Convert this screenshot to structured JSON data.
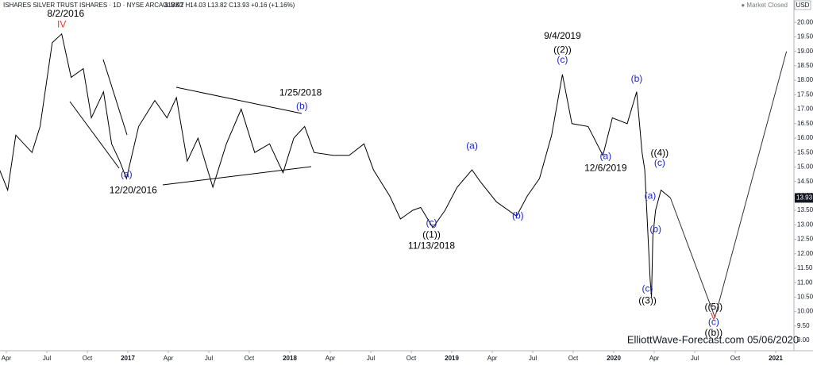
{
  "chart_data": {
    "type": "line",
    "title": "ISHARES SILVER TRUST ISHARES · 1D · NYSE ARCA & MKT",
    "subtitle": "O13.92 H14.03 L13.82 C13.93 +0.16 (+1.16%)",
    "status": "● Market Closed",
    "currency": "USD",
    "watermark": "ElliottWave-Forecast.com 05/06/2020",
    "color": "#000000",
    "x": [
      2.5,
      3.1,
      3.7,
      4.9,
      5.5,
      6.4,
      7.1,
      7.8,
      8.7,
      9.3,
      10.2,
      10.8,
      11.4,
      11.9,
      12.8,
      14.0,
      14.9,
      15.6,
      16.4,
      17.2,
      18.3,
      19.3,
      20.4,
      21.4,
      22.5,
      23.5,
      24.3,
      25.1,
      25.8,
      27.2,
      28.4,
      29.5,
      30.2,
      31.4,
      32.2,
      33.1,
      33.7,
      34.6,
      35.5,
      36.4,
      37.5,
      38.1,
      39.3,
      40.8,
      41.6,
      42.5,
      43.4,
      44.2,
      44.9,
      46.1,
      47.2,
      47.9,
      49.0,
      49.7,
      50.1,
      50.3,
      50.7,
      50.8,
      50.9,
      51.1,
      51.5,
      52.2
    ],
    "values": [
      14.9,
      14.2,
      16.1,
      15.5,
      16.4,
      19.3,
      19.6,
      18.1,
      18.4,
      16.7,
      17.6,
      15.8,
      15.2,
      14.6,
      16.4,
      17.3,
      16.7,
      17.4,
      15.2,
      16.0,
      14.3,
      15.8,
      17.0,
      15.5,
      15.8,
      14.8,
      16.0,
      16.4,
      15.5,
      15.4,
      15.4,
      15.8,
      14.9,
      14.0,
      13.2,
      13.5,
      13.6,
      12.9,
      13.5,
      14.3,
      14.9,
      14.5,
      13.8,
      13.3,
      14.0,
      14.6,
      16.1,
      18.2,
      16.5,
      16.4,
      15.4,
      16.7,
      16.5,
      17.6,
      15.5,
      14.9,
      11.1,
      10.5,
      12.6,
      13.5,
      14.2,
      13.93
    ],
    "projection_x": [
      52.2,
      55.5,
      60.8
    ],
    "projection_values": [
      13.93,
      9.8,
      19.0
    ],
    "projection_color": "#333333",
    "last_price": 13.93,
    "last_price_color": "#131722",
    "xlim": [
      2.53,
      61.35
    ],
    "ylim": [
      8.7,
      20.5
    ],
    "xticks": [
      {
        "value": 3,
        "label": "Apr"
      },
      {
        "value": 6,
        "label": "Jul"
      },
      {
        "value": 9,
        "label": "Oct"
      },
      {
        "value": 12,
        "label": "2017"
      },
      {
        "value": 15,
        "label": "Apr"
      },
      {
        "value": 18,
        "label": "Jul"
      },
      {
        "value": 21,
        "label": "Oct"
      },
      {
        "value": 24,
        "label": "2018"
      },
      {
        "value": 27,
        "label": "Apr"
      },
      {
        "value": 30,
        "label": "Jul"
      },
      {
        "value": 33,
        "label": "Oct"
      },
      {
        "value": 36,
        "label": "2019"
      },
      {
        "value": 39,
        "label": "Apr"
      },
      {
        "value": 42,
        "label": "Jul"
      },
      {
        "value": 45,
        "label": "Oct"
      },
      {
        "value": 48,
        "label": "2020"
      },
      {
        "value": 51,
        "label": "Apr"
      },
      {
        "value": 54,
        "label": "Jul"
      },
      {
        "value": 57,
        "label": "Oct"
      },
      {
        "value": 60,
        "label": "2021"
      }
    ],
    "yticks": [
      {
        "value": 9,
        "label": "9.00"
      },
      {
        "value": 9.5,
        "label": "9.50"
      },
      {
        "value": 10,
        "label": "10.00"
      },
      {
        "value": 10.5,
        "label": "10.50"
      },
      {
        "value": 11,
        "label": "11.00"
      },
      {
        "value": 11.5,
        "label": "11.50"
      },
      {
        "value": 12,
        "label": "12.00"
      },
      {
        "value": 12.5,
        "label": "12.50"
      },
      {
        "value": 13,
        "label": "13.00"
      },
      {
        "value": 13.5,
        "label": "13.50"
      },
      {
        "value": 14,
        "label": "14.00"
      },
      {
        "value": 14.5,
        "label": "14.50"
      },
      {
        "value": 15,
        "label": "15.00"
      },
      {
        "value": 15.5,
        "label": "15.50"
      },
      {
        "value": 16,
        "label": "16.00"
      },
      {
        "value": 16.5,
        "label": "16.50"
      },
      {
        "value": 17,
        "label": "17.00"
      },
      {
        "value": 17.5,
        "label": "17.50"
      },
      {
        "value": 18,
        "label": "18.00"
      },
      {
        "value": 18.5,
        "label": "18.50"
      },
      {
        "value": 19,
        "label": "19.00"
      },
      {
        "value": 19.5,
        "label": "19.50"
      },
      {
        "value": 20,
        "label": "20.00"
      }
    ],
    "grid": false,
    "annotations": [
      {
        "text": "8/2/2016",
        "x": 7.4,
        "y": 20.28,
        "color": "#000000"
      },
      {
        "text": "IV",
        "x": 7.1,
        "y": 19.92,
        "color": "#e53935"
      },
      {
        "text": "(a)",
        "x": 11.9,
        "y": 14.73,
        "color": "#1e22cc"
      },
      {
        "text": "12/20/2016",
        "x": 12.4,
        "y": 14.18,
        "color": "#000000"
      },
      {
        "text": "1/25/2018",
        "x": 24.8,
        "y": 17.56,
        "color": "#000000"
      },
      {
        "text": "(b)",
        "x": 24.9,
        "y": 17.09,
        "color": "#1e22cc"
      },
      {
        "text": "(c)",
        "x": 34.5,
        "y": 13.06,
        "color": "#1e22cc"
      },
      {
        "text": "((1))",
        "x": 34.5,
        "y": 12.64,
        "color": "#000000"
      },
      {
        "text": "11/13/2018",
        "x": 34.5,
        "y": 12.26,
        "color": "#000000"
      },
      {
        "text": "(a)",
        "x": 37.5,
        "y": 15.72,
        "color": "#1e22cc"
      },
      {
        "text": "(b)",
        "x": 40.9,
        "y": 13.3,
        "color": "#1e22cc"
      },
      {
        "text": "9/4/2019",
        "x": 44.2,
        "y": 19.51,
        "color": "#000000"
      },
      {
        "text": "((2))",
        "x": 44.2,
        "y": 19.04,
        "color": "#000000"
      },
      {
        "text": "(c)",
        "x": 44.2,
        "y": 18.69,
        "color": "#1e22cc"
      },
      {
        "text": "(a)",
        "x": 47.4,
        "y": 15.36,
        "color": "#1e22cc"
      },
      {
        "text": "12/6/2019",
        "x": 47.4,
        "y": 14.95,
        "color": "#000000"
      },
      {
        "text": "(b)",
        "x": 49.7,
        "y": 18.03,
        "color": "#1e22cc"
      },
      {
        "text": "((4))",
        "x": 51.4,
        "y": 15.47,
        "color": "#000000"
      },
      {
        "text": "(c)",
        "x": 51.4,
        "y": 15.12,
        "color": "#1e22cc"
      },
      {
        "text": "(a)",
        "x": 50.7,
        "y": 13.99,
        "color": "#1e22cc"
      },
      {
        "text": "(b)",
        "x": 51.1,
        "y": 12.84,
        "color": "#1e22cc"
      },
      {
        "text": "(c)",
        "x": 50.5,
        "y": 10.77,
        "color": "#1e22cc"
      },
      {
        "text": "((3))",
        "x": 50.5,
        "y": 10.36,
        "color": "#000000"
      },
      {
        "text": "((5))",
        "x": 55.4,
        "y": 10.14,
        "color": "#000000"
      },
      {
        "text": "V",
        "x": 55.4,
        "y": 9.81,
        "color": "#e53935"
      },
      {
        "text": "(c)",
        "x": 55.4,
        "y": 9.62,
        "color": "#1e22cc"
      },
      {
        "text": "((b))",
        "x": 55.4,
        "y": 9.26,
        "color": "#000000"
      }
    ]
  }
}
